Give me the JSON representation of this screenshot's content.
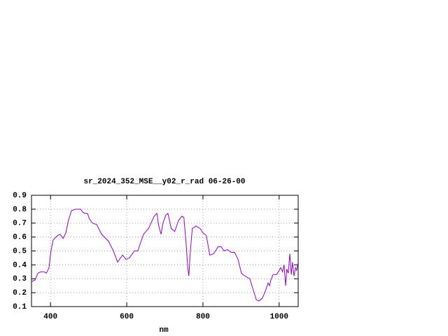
{
  "chart_data": {
    "type": "line",
    "title": "sr_2024_352_MSE__y02_r_rad 06-26-00",
    "x_label": "nm",
    "xlim": [
      350,
      1050
    ],
    "xticks": [
      400,
      600,
      800,
      1000
    ],
    "ylim": [
      0.1,
      0.9
    ],
    "yticks": [
      0.1,
      0.2,
      0.3,
      0.4,
      0.5,
      0.6,
      0.7,
      0.8,
      0.9
    ],
    "grid": true,
    "series": [
      {
        "color": "#9400d3",
        "x": [
          350,
          359,
          367,
          374,
          383,
          389,
          396,
          401,
          407,
          418,
          425,
          433,
          440,
          447,
          455,
          466,
          479,
          484,
          490,
          497,
          502,
          510,
          521,
          534,
          552,
          565,
          576,
          589,
          598,
          607,
          620,
          629,
          644,
          657,
          672,
          679,
          684,
          690,
          695,
          703,
          708,
          717,
          726,
          736,
          745,
          750,
          756,
          760,
          763,
          767,
          772,
          782,
          793,
          800,
          809,
          818,
          828,
          840,
          848,
          855,
          864,
          874,
          883,
          892,
          901,
          910,
          923,
          932,
          940,
          947,
          956,
          965,
          971,
          975,
          978,
          984,
          993,
          998,
          1004,
          1009,
          1013,
          1017,
          1020,
          1024,
          1028,
          1032,
          1035,
          1039,
          1043,
          1046,
          1050
        ],
        "values": [
          0.28,
          0.29,
          0.34,
          0.35,
          0.35,
          0.34,
          0.38,
          0.5,
          0.58,
          0.61,
          0.62,
          0.59,
          0.63,
          0.72,
          0.79,
          0.8,
          0.8,
          0.78,
          0.77,
          0.77,
          0.73,
          0.7,
          0.69,
          0.62,
          0.57,
          0.5,
          0.42,
          0.47,
          0.44,
          0.45,
          0.5,
          0.5,
          0.62,
          0.66,
          0.75,
          0.77,
          0.68,
          0.62,
          0.7,
          0.76,
          0.77,
          0.66,
          0.64,
          0.72,
          0.75,
          0.74,
          0.55,
          0.38,
          0.32,
          0.5,
          0.66,
          0.68,
          0.66,
          0.63,
          0.61,
          0.47,
          0.48,
          0.53,
          0.53,
          0.5,
          0.51,
          0.49,
          0.49,
          0.44,
          0.34,
          0.32,
          0.3,
          0.22,
          0.15,
          0.14,
          0.16,
          0.22,
          0.27,
          0.25,
          0.29,
          0.33,
          0.33,
          0.35,
          0.38,
          0.35,
          0.4,
          0.25,
          0.37,
          0.34,
          0.48,
          0.33,
          0.42,
          0.32,
          0.38,
          0.36,
          0.42
        ]
      }
    ]
  }
}
